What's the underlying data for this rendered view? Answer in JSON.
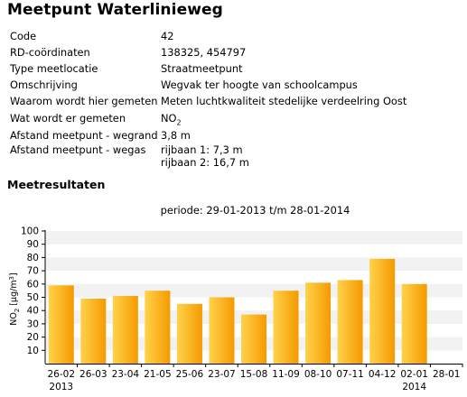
{
  "title": "Meetpunt Waterlinieweg",
  "info_rows": [
    {
      "label": "Code",
      "value": "42"
    },
    {
      "label": "RD-coördinaten",
      "value": "138325, 454797"
    },
    {
      "label": "Type meetlocatie",
      "value": "Straatmeetpunt"
    },
    {
      "label": "Omschrijving",
      "value": "Wegvak ter hoogte van schoolcampus"
    },
    {
      "label": "Waarom wordt hier gemeten",
      "value": "Meten luchtkwaliteit stedelijke verdeelring Oost"
    },
    {
      "label": "Wat wordt er gemeten",
      "value": "NO",
      "value_sub": "2"
    },
    {
      "label": "Afstand meetpunt - wegrand",
      "value": "3,8 m"
    },
    {
      "label": "Afstand meetpunt - wegas",
      "value": "rijbaan 1: 7,3 m",
      "value2": "rijbaan 2: 16,7 m"
    }
  ],
  "section_title": "Meetresultaten",
  "periode": "periode: 29-01-2013 t/m 28-01-2014",
  "colors": {
    "bar_light": "#ffd24a",
    "bar_dark": "#f59a00",
    "grid_band": "#f2f2f2"
  },
  "chart_data": {
    "type": "bar",
    "title": "periode: 29-01-2013 t/m 28-01-2014",
    "ylabel": "NO2 [µg/m3]",
    "ylabel_parts": {
      "main": "NO",
      "sub": "2",
      "unit_open": " [µg/m",
      "unit_sup": "3",
      "unit_close": "]"
    },
    "ylim": [
      0,
      100
    ],
    "yticks": [
      10,
      20,
      30,
      40,
      50,
      60,
      70,
      80,
      90,
      100
    ],
    "categories": [
      "26-02",
      "26-03",
      "23-04",
      "21-05",
      "25-06",
      "23-07",
      "15-08",
      "11-09",
      "08-10",
      "07-11",
      "04-12",
      "02-01",
      "28-01"
    ],
    "category_years": {
      "0": "2013",
      "11": "2014"
    },
    "values": [
      59,
      49,
      51,
      55,
      45,
      50,
      37,
      55,
      61,
      63,
      79,
      60,
      null
    ],
    "grid": true
  }
}
